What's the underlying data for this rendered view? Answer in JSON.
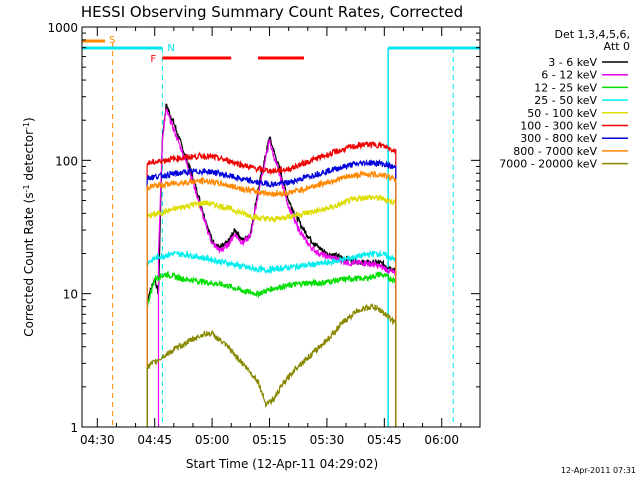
{
  "chart_data": {
    "type": "line",
    "title": "HESSI Observing Summary Count Rates, Corrected",
    "xlabel": "Start Time (12-Apr-11 04:29:02)",
    "ylabel_main": "Corrected Count Rate (s",
    "ylabel_sup1": "-1",
    "ylabel_mid": " detector",
    "ylabel_sup2": "-1",
    "ylabel_end": ")",
    "y_scale": "log",
    "xlim": [
      "04:26",
      "06:10"
    ],
    "ylim": [
      1,
      1000
    ],
    "x_ticks": [
      "04:30",
      "04:45",
      "05:00",
      "05:15",
      "05:30",
      "05:45",
      "06:00"
    ],
    "y_ticks": [
      {
        "value": 1,
        "label": "1"
      },
      {
        "value": 10,
        "label": "10"
      },
      {
        "value": 100,
        "label": "100"
      },
      {
        "value": 1000,
        "label": "1000"
      }
    ],
    "grid": false,
    "legend_placement": "right",
    "legend_header": [
      "Det 1,3,4,5,6,",
      "Att 0"
    ],
    "series": [
      {
        "name": "3 - 6 keV",
        "color": "#000000",
        "points": [
          [
            "04:43",
            9
          ],
          [
            "04:45",
            13
          ],
          [
            "04:46",
            10
          ],
          [
            "04:47",
            150
          ],
          [
            "04:48",
            260
          ],
          [
            "04:50",
            190
          ],
          [
            "04:52",
            130
          ],
          [
            "04:54",
            90
          ],
          [
            "04:56",
            60
          ],
          [
            "04:58",
            38
          ],
          [
            "05:00",
            25
          ],
          [
            "05:02",
            22
          ],
          [
            "05:04",
            24
          ],
          [
            "05:06",
            30
          ],
          [
            "05:08",
            25
          ],
          [
            "05:10",
            28
          ],
          [
            "05:12",
            60
          ],
          [
            "05:14",
            110
          ],
          [
            "05:15",
            150
          ],
          [
            "05:16",
            120
          ],
          [
            "05:18",
            80
          ],
          [
            "05:20",
            50
          ],
          [
            "05:22",
            38
          ],
          [
            "05:24",
            30
          ],
          [
            "05:26",
            25
          ],
          [
            "05:28",
            22
          ],
          [
            "05:30",
            20
          ],
          [
            "05:33",
            19
          ],
          [
            "05:36",
            18
          ],
          [
            "05:40",
            17
          ],
          [
            "05:44",
            17
          ],
          [
            "05:48",
            15
          ]
        ]
      },
      {
        "name": "6 - 12 keV",
        "color": "#ee00ee",
        "points": [
          [
            "04:46",
            20
          ],
          [
            "04:47",
            140
          ],
          [
            "04:48",
            240
          ],
          [
            "04:50",
            170
          ],
          [
            "04:52",
            120
          ],
          [
            "04:54",
            85
          ],
          [
            "04:56",
            55
          ],
          [
            "04:58",
            35
          ],
          [
            "05:00",
            24
          ],
          [
            "05:02",
            21
          ],
          [
            "05:04",
            23
          ],
          [
            "05:06",
            28
          ],
          [
            "05:08",
            24
          ],
          [
            "05:10",
            27
          ],
          [
            "05:12",
            55
          ],
          [
            "05:14",
            105
          ],
          [
            "05:15",
            140
          ],
          [
            "05:16",
            110
          ],
          [
            "05:18",
            72
          ],
          [
            "05:20",
            45
          ],
          [
            "05:22",
            33
          ],
          [
            "05:24",
            26
          ],
          [
            "05:26",
            22
          ],
          [
            "05:28",
            20
          ],
          [
            "05:30",
            19
          ],
          [
            "05:33",
            18
          ],
          [
            "05:36",
            17
          ],
          [
            "05:40",
            17
          ],
          [
            "05:44",
            16
          ],
          [
            "05:48",
            14
          ]
        ]
      },
      {
        "name": "12 - 25 keV",
        "color": "#00dd00",
        "points": [
          [
            "04:43",
            8
          ],
          [
            "04:45",
            13
          ],
          [
            "04:48",
            14
          ],
          [
            "04:52",
            13
          ],
          [
            "04:56",
            12.5
          ],
          [
            "05:00",
            12
          ],
          [
            "05:04",
            11.5
          ],
          [
            "05:08",
            10.5
          ],
          [
            "05:12",
            10
          ],
          [
            "05:16",
            11
          ],
          [
            "05:20",
            11.5
          ],
          [
            "05:24",
            12
          ],
          [
            "05:28",
            12
          ],
          [
            "05:32",
            12.5
          ],
          [
            "05:36",
            13
          ],
          [
            "05:40",
            13
          ],
          [
            "05:44",
            14
          ],
          [
            "05:48",
            12.5
          ]
        ]
      },
      {
        "name": "25 - 50 keV",
        "color": "#00eeee",
        "points": [
          [
            "04:43",
            17
          ],
          [
            "04:46",
            19
          ],
          [
            "04:50",
            20
          ],
          [
            "04:54",
            19.5
          ],
          [
            "04:58",
            18.5
          ],
          [
            "05:02",
            17.5
          ],
          [
            "05:06",
            16.5
          ],
          [
            "05:10",
            15.5
          ],
          [
            "05:14",
            15
          ],
          [
            "05:18",
            15.5
          ],
          [
            "05:22",
            16
          ],
          [
            "05:26",
            16.5
          ],
          [
            "05:30",
            17
          ],
          [
            "05:34",
            18
          ],
          [
            "05:38",
            19
          ],
          [
            "05:42",
            20
          ],
          [
            "05:44",
            20
          ],
          [
            "05:46",
            19
          ],
          [
            "05:48",
            18
          ]
        ]
      },
      {
        "name": "50 - 100 keV",
        "color": "#dddd00",
        "points": [
          [
            "04:43",
            38
          ],
          [
            "04:46",
            40
          ],
          [
            "04:50",
            43
          ],
          [
            "04:54",
            46
          ],
          [
            "04:58",
            48
          ],
          [
            "05:00",
            47
          ],
          [
            "05:04",
            44
          ],
          [
            "05:08",
            40
          ],
          [
            "05:12",
            37
          ],
          [
            "05:16",
            36
          ],
          [
            "05:20",
            38
          ],
          [
            "05:24",
            40
          ],
          [
            "05:28",
            42
          ],
          [
            "05:32",
            45
          ],
          [
            "05:36",
            50
          ],
          [
            "05:40",
            53
          ],
          [
            "05:44",
            52
          ],
          [
            "05:48",
            48
          ]
        ]
      },
      {
        "name": "100 - 300 keV",
        "color": "#ee0000",
        "points": [
          [
            "04:43",
            95
          ],
          [
            "04:46",
            98
          ],
          [
            "04:50",
            103
          ],
          [
            "04:54",
            106
          ],
          [
            "04:58",
            108
          ],
          [
            "05:00",
            106
          ],
          [
            "05:04",
            100
          ],
          [
            "05:08",
            92
          ],
          [
            "05:12",
            86
          ],
          [
            "05:16",
            83
          ],
          [
            "05:20",
            86
          ],
          [
            "05:24",
            95
          ],
          [
            "05:28",
            105
          ],
          [
            "05:32",
            115
          ],
          [
            "05:36",
            125
          ],
          [
            "05:40",
            132
          ],
          [
            "05:44",
            130
          ],
          [
            "05:48",
            118
          ]
        ]
      },
      {
        "name": "300 - 800 keV",
        "color": "#0000dd",
        "points": [
          [
            "04:43",
            74
          ],
          [
            "04:46",
            76
          ],
          [
            "04:50",
            79
          ],
          [
            "04:54",
            82
          ],
          [
            "04:58",
            83
          ],
          [
            "05:00",
            82
          ],
          [
            "05:04",
            77
          ],
          [
            "05:08",
            72
          ],
          [
            "05:12",
            68
          ],
          [
            "05:16",
            66
          ],
          [
            "05:20",
            68
          ],
          [
            "05:24",
            74
          ],
          [
            "05:28",
            80
          ],
          [
            "05:32",
            86
          ],
          [
            "05:36",
            92
          ],
          [
            "05:40",
            96
          ],
          [
            "05:44",
            95
          ],
          [
            "05:48",
            88
          ]
        ]
      },
      {
        "name": "800 - 7000 keV",
        "color": "#ff8800",
        "points": [
          [
            "04:43",
            63
          ],
          [
            "04:46",
            65
          ],
          [
            "04:50",
            67
          ],
          [
            "04:54",
            69
          ],
          [
            "04:58",
            70
          ],
          [
            "05:00",
            69
          ],
          [
            "05:04",
            65
          ],
          [
            "05:08",
            61
          ],
          [
            "05:12",
            58
          ],
          [
            "05:16",
            56
          ],
          [
            "05:20",
            57
          ],
          [
            "05:24",
            61
          ],
          [
            "05:28",
            66
          ],
          [
            "05:32",
            71
          ],
          [
            "05:36",
            76
          ],
          [
            "05:40",
            79
          ],
          [
            "05:44",
            78
          ],
          [
            "05:48",
            73
          ]
        ]
      },
      {
        "name": "7000 - 20000 keV",
        "color": "#888800",
        "points": [
          [
            "04:43",
            2.8
          ],
          [
            "04:46",
            3.2
          ],
          [
            "04:50",
            3.8
          ],
          [
            "04:54",
            4.4
          ],
          [
            "04:58",
            5
          ],
          [
            "05:00",
            5
          ],
          [
            "05:04",
            4
          ],
          [
            "05:08",
            3
          ],
          [
            "05:12",
            2.2
          ],
          [
            "05:14",
            1.5
          ],
          [
            "05:16",
            1.6
          ],
          [
            "05:18",
            2
          ],
          [
            "05:22",
            2.8
          ],
          [
            "05:26",
            3.5
          ],
          [
            "05:30",
            4.5
          ],
          [
            "05:34",
            6
          ],
          [
            "05:38",
            7.5
          ],
          [
            "05:42",
            8
          ],
          [
            "05:44",
            7.5
          ],
          [
            "05:48",
            6
          ]
        ]
      }
    ],
    "annotations": {
      "S": {
        "label": "S",
        "color": "#ff8800",
        "start": "04:26",
        "end": "04:32"
      },
      "N": {
        "label": "N",
        "color": "#00e5ee",
        "lines": [
          "04:26",
          "04:47",
          "05:46",
          "06:03"
        ]
      },
      "F": {
        "label": "F",
        "color": "#ff0000",
        "segments": [
          [
            "04:47",
            "05:05"
          ],
          [
            "05:12",
            "05:24"
          ]
        ]
      },
      "S_line": "04:34",
      "N_lines": [
        "04:47",
        "05:46",
        "06:03"
      ]
    },
    "timestamp": "12-Apr-2011 07:31"
  }
}
